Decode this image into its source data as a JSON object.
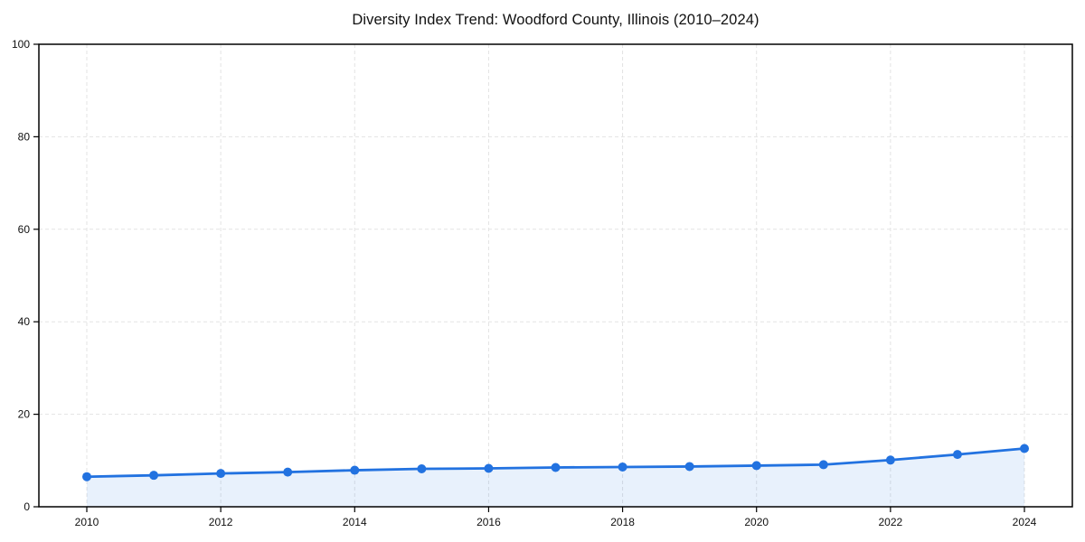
{
  "title": "Diversity Index Trend: Woodford County, Illinois (2010–2024)",
  "chart_data": {
    "type": "line",
    "title": "Diversity Index Trend: Woodford County, Illinois (2010–2024)",
    "x": [
      2010,
      2011,
      2012,
      2013,
      2014,
      2015,
      2016,
      2017,
      2018,
      2019,
      2020,
      2021,
      2022,
      2023,
      2024
    ],
    "series": [
      {
        "name": "Diversity Index",
        "values": [
          6.5,
          6.8,
          7.2,
          7.5,
          7.9,
          8.2,
          8.3,
          8.5,
          8.6,
          8.7,
          8.9,
          9.1,
          10.1,
          11.3,
          12.6
        ]
      }
    ],
    "xlabel": "",
    "ylabel": "",
    "xlim": [
      2010,
      2024
    ],
    "ylim": [
      0,
      100
    ],
    "xticks": [
      2010,
      2012,
      2014,
      2016,
      2018,
      2020,
      2022,
      2024
    ],
    "yticks": [
      0,
      20,
      40,
      60,
      80,
      100
    ],
    "grid": true,
    "grid_style": "dashed",
    "legend": false,
    "marker": "circle",
    "colors": {
      "line": "#2272e0",
      "marker": "#2272e0",
      "area_fill": "rgba(34,114,224,0.10)",
      "gridline": "#e3e3e3",
      "spine": "#000000",
      "text": "#111111",
      "background": "#ffffff"
    }
  }
}
